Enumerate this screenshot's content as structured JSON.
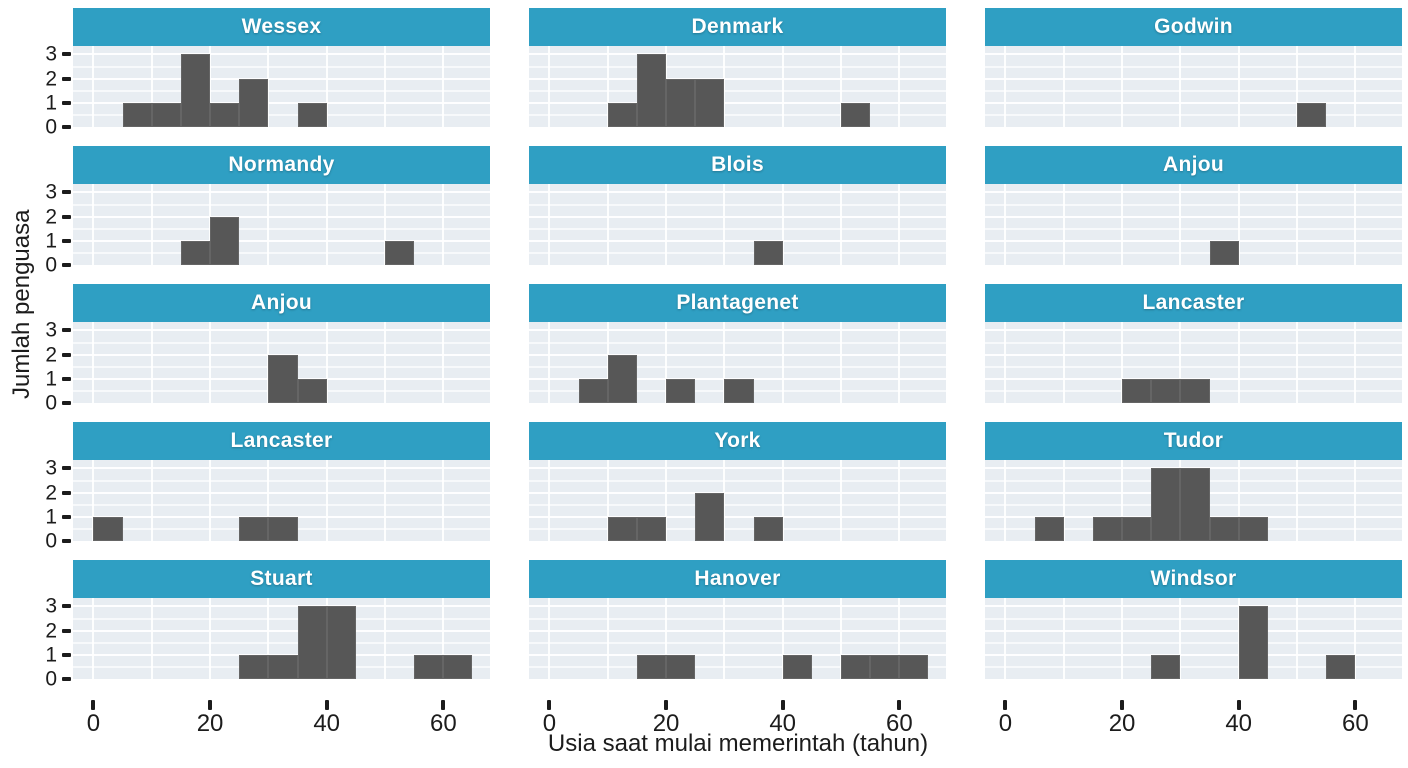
{
  "chart_data": {
    "type": "histogram",
    "facet_layout": {
      "rows": 5,
      "cols": 3
    },
    "xlabel": "Usia saat mulai memerintah (tahun)",
    "ylabel": "Jumlah penguasa",
    "x_ticks": [
      0,
      20,
      40,
      60
    ],
    "y_ticks": [
      0,
      1,
      2,
      3
    ],
    "bin_width": 5,
    "xlim": [
      -3.5,
      68
    ],
    "ylim": [
      0,
      3.35
    ],
    "x_gridlines": [
      0,
      10,
      20,
      30,
      40,
      50,
      60
    ],
    "y_gridline_step": 0.5,
    "legend": "none",
    "facets": [
      {
        "label": "Wessex",
        "bins": [
          {
            "start": 5,
            "count": 1
          },
          {
            "start": 10,
            "count": 1
          },
          {
            "start": 15,
            "count": 3
          },
          {
            "start": 20,
            "count": 1
          },
          {
            "start": 25,
            "count": 2
          },
          {
            "start": 35,
            "count": 1
          }
        ]
      },
      {
        "label": "Denmark",
        "bins": [
          {
            "start": 10,
            "count": 1
          },
          {
            "start": 15,
            "count": 3
          },
          {
            "start": 20,
            "count": 2
          },
          {
            "start": 25,
            "count": 2
          },
          {
            "start": 50,
            "count": 1
          }
        ]
      },
      {
        "label": "Godwin",
        "bins": [
          {
            "start": 50,
            "count": 1
          }
        ]
      },
      {
        "label": "Normandy",
        "bins": [
          {
            "start": 15,
            "count": 1
          },
          {
            "start": 20,
            "count": 2
          },
          {
            "start": 50,
            "count": 1
          }
        ]
      },
      {
        "label": "Blois",
        "bins": [
          {
            "start": 35,
            "count": 1
          }
        ]
      },
      {
        "label": "Anjou",
        "bins": [
          {
            "start": 35,
            "count": 1
          }
        ]
      },
      {
        "label": "Anjou",
        "bins": [
          {
            "start": 30,
            "count": 2
          },
          {
            "start": 35,
            "count": 1
          }
        ]
      },
      {
        "label": "Plantagenet",
        "bins": [
          {
            "start": 5,
            "count": 1
          },
          {
            "start": 10,
            "count": 2
          },
          {
            "start": 20,
            "count": 1
          },
          {
            "start": 30,
            "count": 1
          }
        ]
      },
      {
        "label": "Lancaster",
        "bins": [
          {
            "start": 20,
            "count": 1
          },
          {
            "start": 25,
            "count": 1
          },
          {
            "start": 30,
            "count": 1
          }
        ]
      },
      {
        "label": "Lancaster",
        "bins": [
          {
            "start": 0,
            "count": 1
          },
          {
            "start": 25,
            "count": 1
          },
          {
            "start": 30,
            "count": 1
          }
        ]
      },
      {
        "label": "York",
        "bins": [
          {
            "start": 10,
            "count": 1
          },
          {
            "start": 15,
            "count": 1
          },
          {
            "start": 25,
            "count": 2
          },
          {
            "start": 35,
            "count": 1
          }
        ]
      },
      {
        "label": "Tudor",
        "bins": [
          {
            "start": 5,
            "count": 1
          },
          {
            "start": 15,
            "count": 1
          },
          {
            "start": 20,
            "count": 1
          },
          {
            "start": 25,
            "count": 3
          },
          {
            "start": 30,
            "count": 3
          },
          {
            "start": 35,
            "count": 1
          },
          {
            "start": 40,
            "count": 1
          }
        ]
      },
      {
        "label": "Stuart",
        "bins": [
          {
            "start": 25,
            "count": 1
          },
          {
            "start": 30,
            "count": 1
          },
          {
            "start": 35,
            "count": 3
          },
          {
            "start": 40,
            "count": 3
          },
          {
            "start": 55,
            "count": 1
          },
          {
            "start": 60,
            "count": 1
          }
        ]
      },
      {
        "label": "Hanover",
        "bins": [
          {
            "start": 15,
            "count": 1
          },
          {
            "start": 20,
            "count": 1
          },
          {
            "start": 40,
            "count": 1
          },
          {
            "start": 50,
            "count": 1
          },
          {
            "start": 55,
            "count": 1
          },
          {
            "start": 60,
            "count": 1
          }
        ]
      },
      {
        "label": "Windsor",
        "bins": [
          {
            "start": 25,
            "count": 1
          },
          {
            "start": 40,
            "count": 3
          },
          {
            "start": 55,
            "count": 1
          }
        ]
      }
    ]
  },
  "colors": {
    "facet_header_bg": "#2f9fc3",
    "facet_header_text": "#ffffff",
    "bar_fill": "#575757",
    "panel_bg": "#e8edf2",
    "gridline": "#ffffff",
    "axis_text": "#1c1c1c",
    "page_bg": "#ffffff"
  }
}
